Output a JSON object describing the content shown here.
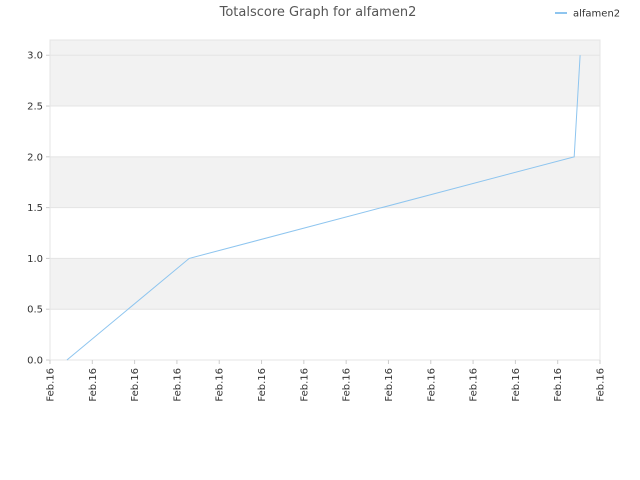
{
  "chart_data": {
    "type": "line",
    "title": "Totalscore Graph for alfamen2",
    "x": [
      0.4,
      3.29,
      12.39,
      12.53
    ],
    "series": [
      {
        "name": "alfamen2",
        "color": "#8ec5ef",
        "values": [
          0,
          1,
          2,
          3
        ]
      }
    ],
    "xlim": [
      0,
      13
    ],
    "xticks": [
      {
        "value": 0,
        "label": "Feb.16"
      },
      {
        "value": 1,
        "label": "Feb.16"
      },
      {
        "value": 2,
        "label": "Feb.16"
      },
      {
        "value": 3,
        "label": "Feb.16"
      },
      {
        "value": 4,
        "label": "Feb.16"
      },
      {
        "value": 5,
        "label": "Feb.16"
      },
      {
        "value": 6,
        "label": "Feb.16"
      },
      {
        "value": 7,
        "label": "Feb.16"
      },
      {
        "value": 8,
        "label": "Feb.16"
      },
      {
        "value": 9,
        "label": "Feb.16"
      },
      {
        "value": 10,
        "label": "Feb.16"
      },
      {
        "value": 11,
        "label": "Feb.16"
      },
      {
        "value": 12,
        "label": "Feb.16"
      },
      {
        "value": 13,
        "label": "Feb.16"
      }
    ],
    "ylim": [
      0,
      3.15
    ],
    "yticks": [
      {
        "value": 0,
        "label": "0.0"
      },
      {
        "value": 0.5,
        "label": "0.5"
      },
      {
        "value": 1,
        "label": "1.0"
      },
      {
        "value": 1.5,
        "label": "1.5"
      },
      {
        "value": 2,
        "label": "2.0"
      },
      {
        "value": 2.5,
        "label": "2.5"
      },
      {
        "value": 3,
        "label": "3.0"
      }
    ],
    "grid": true,
    "legend": "top-right"
  }
}
